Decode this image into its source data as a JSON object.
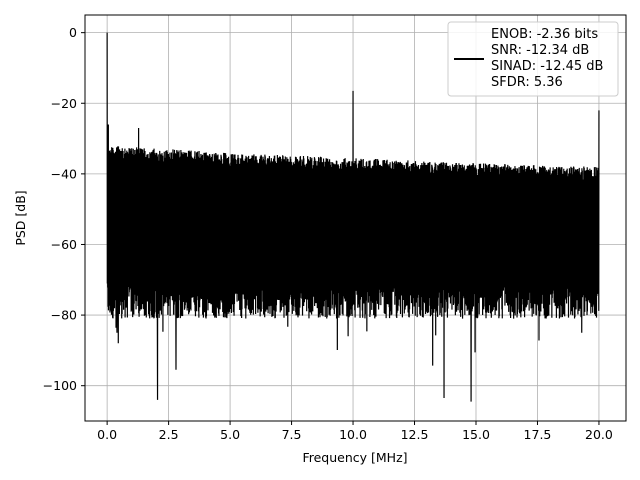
{
  "chart_data": {
    "type": "line",
    "xlabel": "Frequency [MHz]",
    "ylabel": "PSD [dB]",
    "xlim": [
      -0.9,
      21.1
    ],
    "ylim": [
      -110,
      5
    ],
    "xticks": [
      0.0,
      2.5,
      5.0,
      7.5,
      10.0,
      12.5,
      15.0,
      17.5,
      20.0
    ],
    "xtick_labels": [
      "0.0",
      "2.5",
      "5.0",
      "7.5",
      "10.0",
      "12.5",
      "15.0",
      "17.5",
      "20.0"
    ],
    "yticks": [
      0,
      -20,
      -40,
      -60,
      -80,
      -100
    ],
    "ytick_labels": [
      "0",
      "−20",
      "−40",
      "−60",
      "−80",
      "−100"
    ],
    "grid": true,
    "legend_position": "top-right",
    "series": [
      {
        "legend_lines": [
          "ENOB: -2.36 bits",
          "SNR: -12.34 dB",
          "SINAD: -12.45 dB",
          "SFDR: 5.36"
        ],
        "color": "#000000",
        "noise_floor": {
          "x_range": [
            0.0,
            20.0
          ],
          "upper_envelope": [
            [
              0.0,
              -32
            ],
            [
              5.0,
              -34
            ],
            [
              10.0,
              -35.5
            ],
            [
              15.0,
              -37
            ],
            [
              20.0,
              -38
            ]
          ],
          "typical_lower": -78
        },
        "spikes": [
          {
            "x": 0.0,
            "y": 0
          },
          {
            "x": 0.05,
            "y": -26
          },
          {
            "x": 1.28,
            "y": -27
          },
          {
            "x": 10.0,
            "y": -16.5
          },
          {
            "x": 20.0,
            "y": -22
          }
        ],
        "deep_nulls": [
          {
            "x": 2.05,
            "y": -104
          },
          {
            "x": 2.8,
            "y": -95.5
          },
          {
            "x": 13.7,
            "y": -103.5
          },
          {
            "x": 14.8,
            "y": -104.5
          },
          {
            "x": 9.8,
            "y": -86
          },
          {
            "x": 0.4,
            "y": -85
          },
          {
            "x": 19.3,
            "y": -85
          }
        ]
      }
    ]
  }
}
